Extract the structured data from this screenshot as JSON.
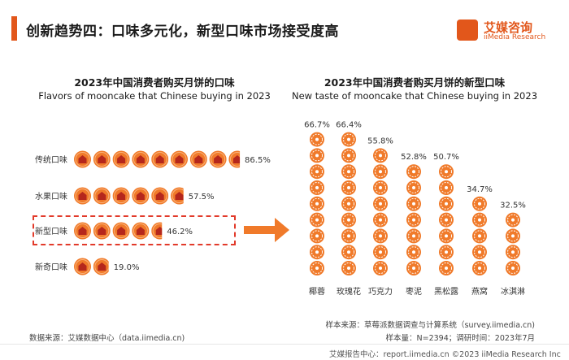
{
  "header": {
    "title": "创新趋势四：口味多元化，新型口味市场接受度高",
    "logo_cn": "艾媒咨询",
    "logo_en": "iiMedia Research",
    "logo_char": "艾"
  },
  "colors": {
    "accent": "#e2571b",
    "mooncake": "#f07a2a",
    "mooncake_center": "#b5271c",
    "highlight_box": "#e23a2a"
  },
  "chart_data": [
    {
      "type": "bar",
      "title": "2023年中国消费者购买月饼的口味",
      "subtitle": "Flavors of mooncake that Chinese buying in 2023",
      "categories": [
        "传统口味",
        "水果口味",
        "新型口味",
        "新奇口味"
      ],
      "values": [
        86.5,
        57.5,
        46.2,
        19.0
      ],
      "value_labels": [
        "86.5%",
        "57.5%",
        "46.2%",
        "19.0%"
      ],
      "highlighted": "新型口味",
      "orientation": "horizontal"
    },
    {
      "type": "bar",
      "title": "2023年中国消费者购买月饼的新型口味",
      "subtitle": "New taste of mooncake that Chinese buying in 2023",
      "categories": [
        "椰蓉",
        "玫瑰花",
        "巧克力",
        "枣泥",
        "黑松露",
        "燕窝",
        "冰淇淋"
      ],
      "values": [
        66.7,
        66.4,
        55.8,
        52.8,
        50.7,
        34.7,
        32.5
      ],
      "value_labels": [
        "66.7%",
        "66.4%",
        "55.8%",
        "52.8%",
        "50.7%",
        "34.7%",
        "32.5%"
      ],
      "orientation": "vertical"
    }
  ],
  "notes": {
    "sample_source": "样本来源：草莓派数据调查与计算系统（survey.iimedia.cn)",
    "sample_size": "样本量：N=2394；调研时间：2023年7月",
    "data_source": "数据来源：艾媒数据中心（data.iimedia.cn)"
  },
  "footer": {
    "text": "艾媒报告中心：report.iimedia.cn ©2023 iiMedia Research Inc"
  }
}
